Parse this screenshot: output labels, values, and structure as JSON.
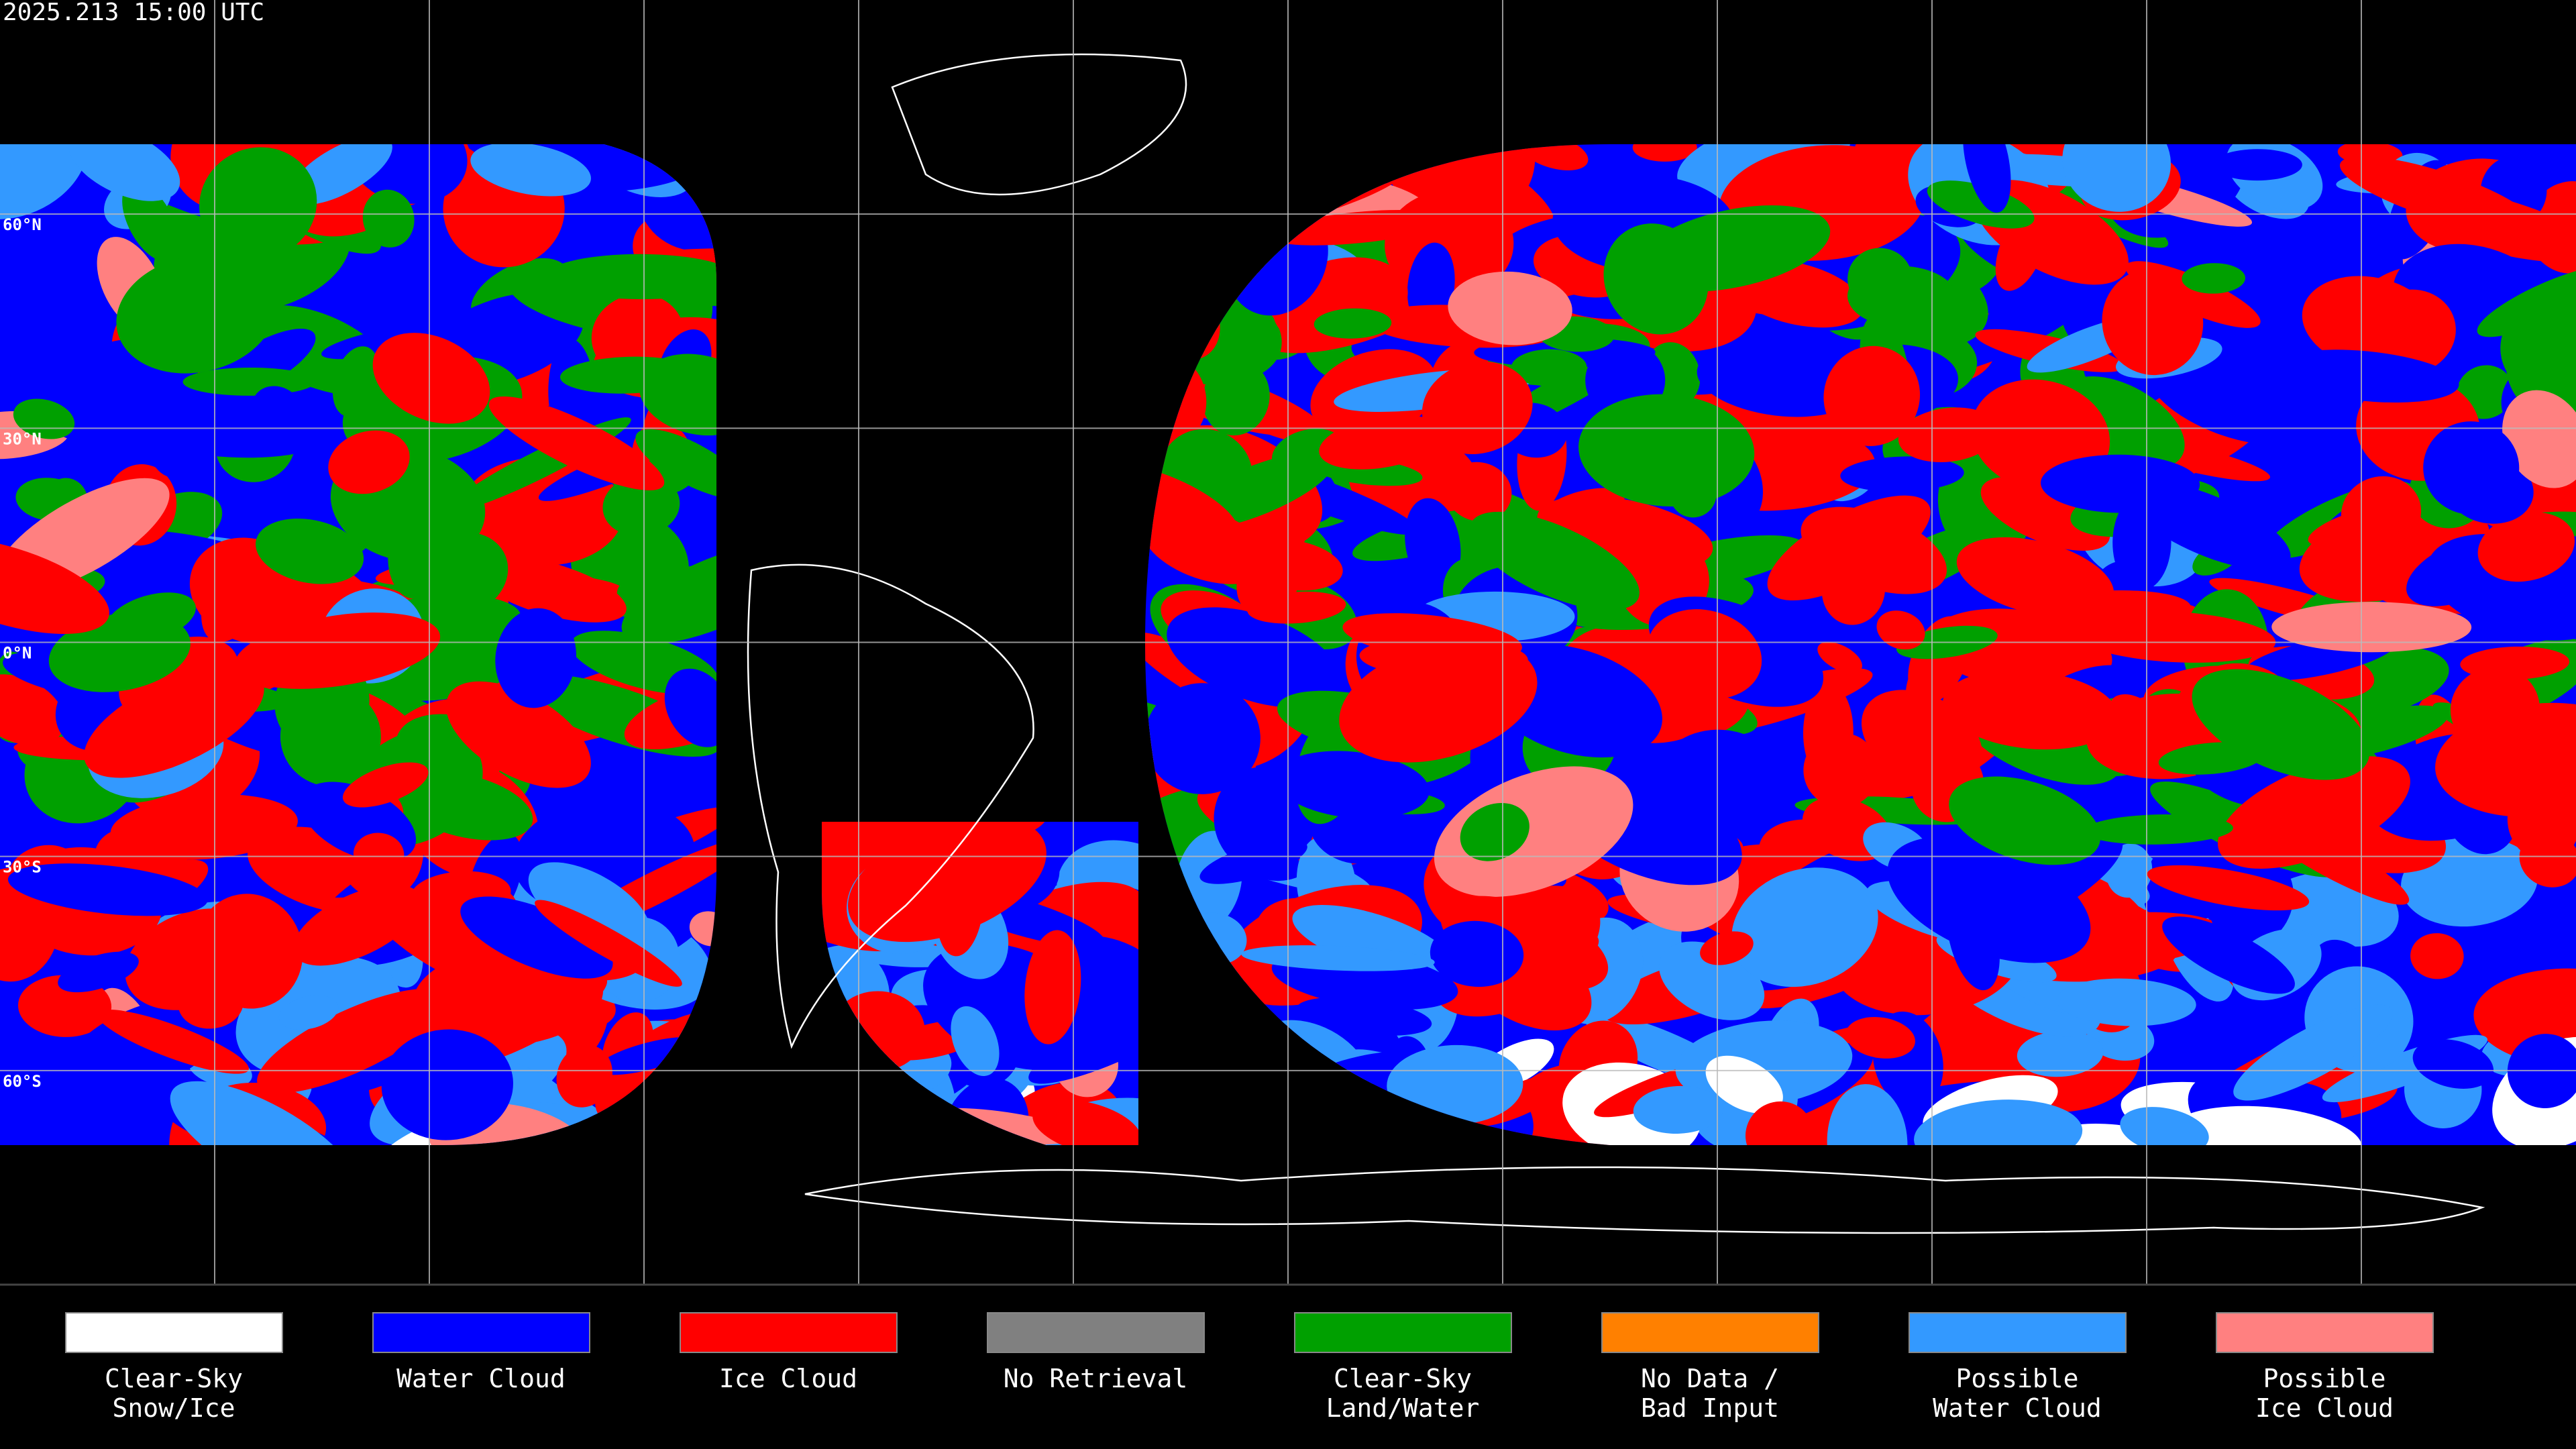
{
  "header": {
    "title": "2025.213 15:00 UTC"
  },
  "latitude_labels": [
    "60°N",
    "30°N",
    "0°N",
    "30°S",
    "60°S"
  ],
  "legend": {
    "items": [
      {
        "label": [
          "Clear-Sky",
          "Snow/Ice"
        ],
        "color": "#ffffff"
      },
      {
        "label": [
          "Water Cloud"
        ],
        "color": "#0000ff"
      },
      {
        "label": [
          "Ice Cloud"
        ],
        "color": "#ff0000"
      },
      {
        "label": [
          "No Retrieval"
        ],
        "color": "#808080"
      },
      {
        "label": [
          "Clear-Sky",
          "Land/Water"
        ],
        "color": "#00a000"
      },
      {
        "label": [
          "No Data /",
          "Bad Input"
        ],
        "color": "#ff8000"
      },
      {
        "label": [
          "Possible",
          "Water Cloud"
        ],
        "color": "#3399ff"
      },
      {
        "label": [
          "Possible",
          "Ice Cloud"
        ],
        "color": "#ff8080"
      }
    ]
  }
}
